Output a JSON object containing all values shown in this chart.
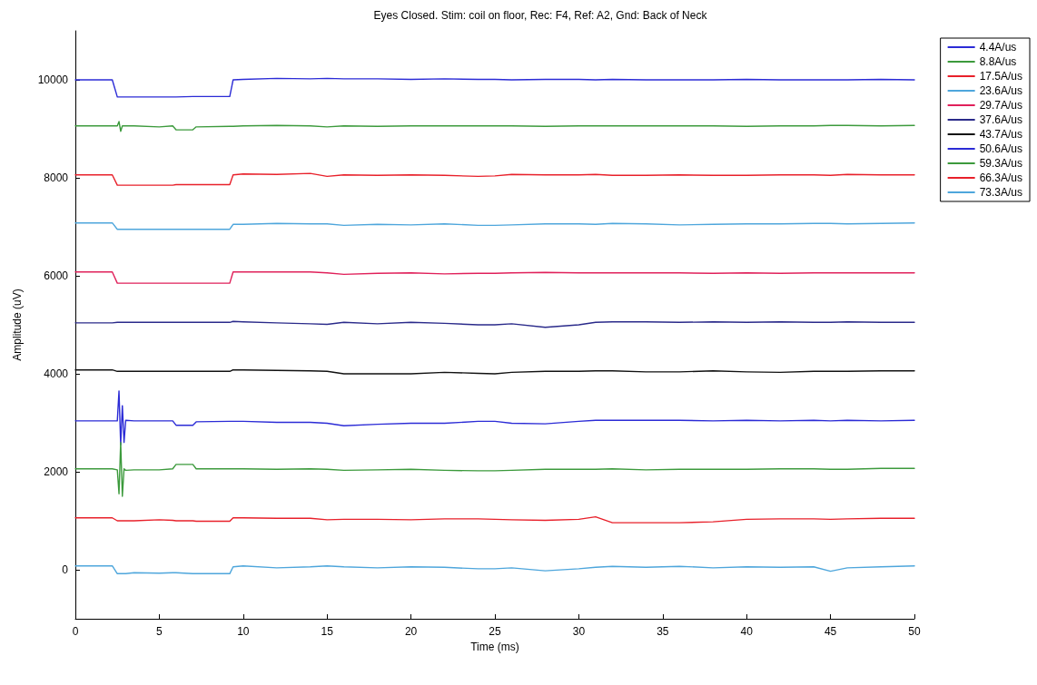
{
  "chart_data": {
    "type": "line",
    "title": "Eyes Closed. Stim: coil on floor, Rec: F4, Ref: A2, Gnd: Back of Neck",
    "xlabel": "Time (ms)",
    "ylabel": "Amplitude (uV)",
    "x": [
      0,
      2.2,
      2.5,
      2.6,
      2.7,
      2.8,
      2.9,
      3.0,
      3.5,
      5,
      5.8,
      6,
      7,
      7.2,
      9.2,
      9.4,
      10,
      12,
      14,
      15,
      16,
      18,
      20,
      22,
      24,
      25,
      26,
      28,
      30,
      31,
      32,
      34,
      36,
      38,
      40,
      42,
      44,
      45,
      46,
      48,
      50
    ],
    "xlim": [
      0,
      50
    ],
    "xticks": [
      0,
      5,
      10,
      15,
      20,
      25,
      30,
      35,
      40,
      45,
      50
    ],
    "ylim": [
      -1000,
      11000
    ],
    "yticks": [
      0,
      2000,
      4000,
      6000,
      8000,
      10000
    ],
    "grid": false,
    "legend": "top right",
    "marker": "none",
    "line_style": "solid",
    "series": [
      {
        "name": "4.4A/us",
        "color": "#2b2bd6",
        "values": [
          10000,
          10000,
          9650,
          9650,
          9650,
          9650,
          9650,
          9650,
          9650,
          9650,
          9650,
          9650,
          9660,
          9660,
          9660,
          10000,
          10010,
          10030,
          10020,
          10030,
          10020,
          10020,
          10010,
          10020,
          10010,
          10010,
          10000,
          10010,
          10010,
          10000,
          10010,
          10000,
          10000,
          10000,
          10010,
          10000,
          10000,
          10000,
          10000,
          10010,
          10000
        ]
      },
      {
        "name": "8.8A/us",
        "color": "#3c9a3c",
        "values": [
          9060,
          9060,
          9060,
          9150,
          8950,
          9060,
          9060,
          9060,
          9060,
          9040,
          9060,
          8980,
          8980,
          9040,
          9050,
          9050,
          9060,
          9070,
          9060,
          9040,
          9060,
          9050,
          9060,
          9060,
          9060,
          9060,
          9060,
          9050,
          9060,
          9060,
          9060,
          9060,
          9060,
          9060,
          9050,
          9060,
          9060,
          9070,
          9070,
          9060,
          9070
        ]
      },
      {
        "name": "17.5A/us",
        "color": "#e8202a",
        "values": [
          8060,
          8060,
          7850,
          7850,
          7850,
          7850,
          7850,
          7850,
          7850,
          7850,
          7850,
          7860,
          7860,
          7860,
          7860,
          8060,
          8080,
          8070,
          8090,
          8030,
          8060,
          8050,
          8060,
          8050,
          8030,
          8040,
          8070,
          8060,
          8060,
          8070,
          8050,
          8050,
          8060,
          8050,
          8050,
          8060,
          8060,
          8050,
          8070,
          8060,
          8060
        ]
      },
      {
        "name": "23.6A/us",
        "color": "#4ea6dc",
        "values": [
          7080,
          7080,
          6950,
          6950,
          6950,
          6950,
          6950,
          6950,
          6950,
          6950,
          6950,
          6950,
          6950,
          6950,
          6950,
          7050,
          7050,
          7070,
          7060,
          7060,
          7030,
          7050,
          7040,
          7060,
          7030,
          7030,
          7040,
          7060,
          7060,
          7050,
          7070,
          7060,
          7040,
          7050,
          7060,
          7060,
          7070,
          7070,
          7060,
          7070,
          7080
        ]
      },
      {
        "name": "29.7A/us",
        "color": "#e0205a",
        "values": [
          6080,
          6080,
          5850,
          5850,
          5850,
          5850,
          5850,
          5850,
          5850,
          5850,
          5850,
          5850,
          5850,
          5850,
          5850,
          6080,
          6080,
          6080,
          6080,
          6060,
          6030,
          6050,
          6060,
          6040,
          6050,
          6050,
          6060,
          6070,
          6060,
          6060,
          6060,
          6060,
          6060,
          6050,
          6060,
          6050,
          6060,
          6060,
          6060,
          6060,
          6060
        ]
      },
      {
        "name": "37.6A/us",
        "color": "#2a2a8a",
        "values": [
          5040,
          5040,
          5050,
          5050,
          5050,
          5050,
          5050,
          5050,
          5050,
          5050,
          5050,
          5050,
          5050,
          5050,
          5050,
          5070,
          5060,
          5040,
          5020,
          5010,
          5050,
          5020,
          5050,
          5030,
          5000,
          5000,
          5020,
          4950,
          5000,
          5050,
          5060,
          5060,
          5050,
          5060,
          5050,
          5060,
          5050,
          5050,
          5060,
          5050,
          5050
        ]
      },
      {
        "name": "43.7A/us",
        "color": "#111111",
        "values": [
          4080,
          4080,
          4050,
          4050,
          4050,
          4050,
          4050,
          4050,
          4050,
          4050,
          4050,
          4050,
          4050,
          4050,
          4050,
          4080,
          4080,
          4070,
          4060,
          4050,
          4000,
          4000,
          4000,
          4030,
          4010,
          4000,
          4030,
          4050,
          4050,
          4060,
          4060,
          4040,
          4040,
          4060,
          4040,
          4030,
          4050,
          4050,
          4050,
          4060,
          4060
        ]
      },
      {
        "name": "50.6A/us",
        "color": "#2b2bd6",
        "values": [
          3040,
          3040,
          3040,
          3650,
          2550,
          3350,
          2600,
          3050,
          3040,
          3040,
          3040,
          2950,
          2950,
          3020,
          3030,
          3030,
          3030,
          3010,
          3010,
          2990,
          2940,
          2970,
          2990,
          2990,
          3030,
          3030,
          2990,
          2980,
          3030,
          3050,
          3050,
          3050,
          3050,
          3040,
          3050,
          3040,
          3050,
          3040,
          3050,
          3040,
          3050
        ]
      },
      {
        "name": "59.3A/us",
        "color": "#3c9a3c",
        "values": [
          2060,
          2060,
          2040,
          1550,
          2600,
          1500,
          2060,
          2030,
          2040,
          2040,
          2060,
          2150,
          2150,
          2060,
          2060,
          2060,
          2060,
          2050,
          2060,
          2050,
          2030,
          2040,
          2050,
          2030,
          2020,
          2020,
          2030,
          2050,
          2050,
          2050,
          2060,
          2040,
          2050,
          2050,
          2050,
          2060,
          2060,
          2050,
          2050,
          2070,
          2070
        ]
      },
      {
        "name": "66.3A/us",
        "color": "#e8202a",
        "values": [
          1060,
          1060,
          1000,
          1000,
          1000,
          1000,
          1000,
          1000,
          1000,
          1020,
          1010,
          1000,
          1000,
          990,
          990,
          1060,
          1060,
          1050,
          1050,
          1020,
          1030,
          1030,
          1020,
          1040,
          1040,
          1030,
          1020,
          1010,
          1030,
          1080,
          960,
          960,
          960,
          980,
          1030,
          1040,
          1040,
          1030,
          1040,
          1050,
          1050
        ]
      },
      {
        "name": "73.3A/us",
        "color": "#4ea6dc",
        "values": [
          80,
          80,
          -80,
          -80,
          -80,
          -80,
          -80,
          -80,
          -60,
          -70,
          -60,
          -60,
          -80,
          -80,
          -80,
          60,
          80,
          40,
          60,
          80,
          60,
          40,
          60,
          50,
          20,
          20,
          40,
          -20,
          20,
          50,
          70,
          50,
          70,
          40,
          60,
          50,
          60,
          -30,
          40,
          60,
          80
        ]
      }
    ]
  }
}
